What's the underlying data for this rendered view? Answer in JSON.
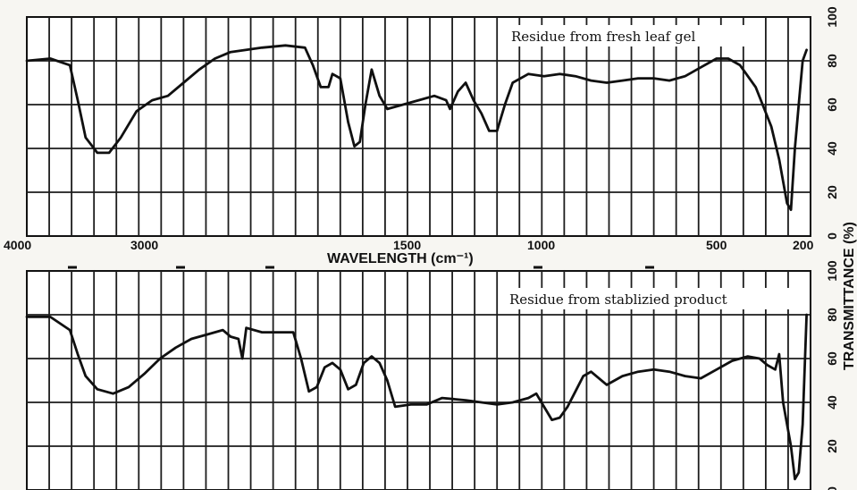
{
  "chart_data": [
    {
      "type": "line",
      "panel_label": "Residue from fresh leaf gel",
      "xlabel": "WAVELENGTH (cm⁻¹)",
      "ylabel": "TRANSMITTANCE (%)",
      "x_tick_labels": [
        "4000",
        "3000",
        "1500",
        "1000",
        "500",
        "200"
      ],
      "y_ticks": [
        0,
        20,
        40,
        60,
        80,
        100
      ],
      "ylim": [
        0,
        100
      ],
      "series": [
        {
          "points": [
            [
              0.0,
              80
            ],
            [
              0.03,
              81
            ],
            [
              0.055,
              78
            ],
            [
              0.065,
              62
            ],
            [
              0.075,
              45
            ],
            [
              0.09,
              38
            ],
            [
              0.105,
              38
            ],
            [
              0.12,
              45
            ],
            [
              0.14,
              57
            ],
            [
              0.16,
              62
            ],
            [
              0.18,
              64
            ],
            [
              0.2,
              70
            ],
            [
              0.22,
              76
            ],
            [
              0.24,
              81
            ],
            [
              0.26,
              84
            ],
            [
              0.28,
              85
            ],
            [
              0.3,
              86
            ],
            [
              0.33,
              87
            ],
            [
              0.355,
              86
            ],
            [
              0.365,
              78
            ],
            [
              0.375,
              68
            ],
            [
              0.385,
              68
            ],
            [
              0.39,
              74
            ],
            [
              0.4,
              72
            ],
            [
              0.41,
              52
            ],
            [
              0.418,
              41
            ],
            [
              0.425,
              43
            ],
            [
              0.432,
              60
            ],
            [
              0.44,
              76
            ],
            [
              0.45,
              64
            ],
            [
              0.46,
              58
            ],
            [
              0.48,
              60
            ],
            [
              0.5,
              62
            ],
            [
              0.52,
              64
            ],
            [
              0.535,
              62
            ],
            [
              0.54,
              58
            ],
            [
              0.55,
              66
            ],
            [
              0.56,
              70
            ],
            [
              0.57,
              62
            ],
            [
              0.58,
              56
            ],
            [
              0.59,
              48
            ],
            [
              0.6,
              48
            ],
            [
              0.61,
              60
            ],
            [
              0.62,
              70
            ],
            [
              0.64,
              74
            ],
            [
              0.66,
              73
            ],
            [
              0.68,
              74
            ],
            [
              0.7,
              73
            ],
            [
              0.72,
              71
            ],
            [
              0.74,
              70
            ],
            [
              0.76,
              71
            ],
            [
              0.78,
              72
            ],
            [
              0.8,
              72
            ],
            [
              0.82,
              71
            ],
            [
              0.84,
              73
            ],
            [
              0.86,
              77
            ],
            [
              0.88,
              81
            ],
            [
              0.895,
              81
            ],
            [
              0.91,
              78
            ],
            [
              0.93,
              68
            ],
            [
              0.95,
              50
            ],
            [
              0.96,
              35
            ],
            [
              0.97,
              15
            ],
            [
              0.975,
              12
            ],
            [
              0.98,
              40
            ],
            [
              0.985,
              60
            ],
            [
              0.99,
              80
            ],
            [
              0.995,
              85
            ]
          ]
        }
      ]
    },
    {
      "type": "line",
      "panel_label": "Residue from stablizied product",
      "ylim": [
        0,
        100
      ],
      "series": [
        {
          "points": [
            [
              0.0,
              79
            ],
            [
              0.03,
              79
            ],
            [
              0.055,
              73
            ],
            [
              0.065,
              62
            ],
            [
              0.075,
              52
            ],
            [
              0.09,
              46
            ],
            [
              0.11,
              44
            ],
            [
              0.13,
              47
            ],
            [
              0.15,
              53
            ],
            [
              0.17,
              60
            ],
            [
              0.19,
              65
            ],
            [
              0.21,
              69
            ],
            [
              0.23,
              71
            ],
            [
              0.25,
              73
            ],
            [
              0.26,
              70
            ],
            [
              0.27,
              69
            ],
            [
              0.275,
              60
            ],
            [
              0.28,
              74
            ],
            [
              0.3,
              72
            ],
            [
              0.32,
              72
            ],
            [
              0.34,
              72
            ],
            [
              0.35,
              60
            ],
            [
              0.36,
              45
            ],
            [
              0.37,
              47
            ],
            [
              0.38,
              56
            ],
            [
              0.39,
              58
            ],
            [
              0.4,
              55
            ],
            [
              0.41,
              46
            ],
            [
              0.42,
              48
            ],
            [
              0.43,
              58
            ],
            [
              0.44,
              61
            ],
            [
              0.45,
              58
            ],
            [
              0.46,
              50
            ],
            [
              0.47,
              38
            ],
            [
              0.49,
              39
            ],
            [
              0.51,
              39
            ],
            [
              0.53,
              42
            ],
            [
              0.56,
              41
            ],
            [
              0.58,
              40
            ],
            [
              0.6,
              39
            ],
            [
              0.62,
              40
            ],
            [
              0.64,
              42
            ],
            [
              0.65,
              44
            ],
            [
              0.66,
              38
            ],
            [
              0.67,
              32
            ],
            [
              0.68,
              33
            ],
            [
              0.69,
              38
            ],
            [
              0.7,
              45
            ],
            [
              0.71,
              52
            ],
            [
              0.72,
              54
            ],
            [
              0.73,
              51
            ],
            [
              0.74,
              48
            ],
            [
              0.76,
              52
            ],
            [
              0.78,
              54
            ],
            [
              0.8,
              55
            ],
            [
              0.82,
              54
            ],
            [
              0.84,
              52
            ],
            [
              0.86,
              51
            ],
            [
              0.88,
              55
            ],
            [
              0.9,
              59
            ],
            [
              0.92,
              61
            ],
            [
              0.935,
              60
            ],
            [
              0.945,
              57
            ],
            [
              0.955,
              55
            ],
            [
              0.96,
              62
            ],
            [
              0.965,
              40
            ],
            [
              0.975,
              20
            ],
            [
              0.98,
              5
            ],
            [
              0.985,
              8
            ],
            [
              0.99,
              30
            ],
            [
              0.995,
              80
            ]
          ]
        }
      ]
    }
  ]
}
